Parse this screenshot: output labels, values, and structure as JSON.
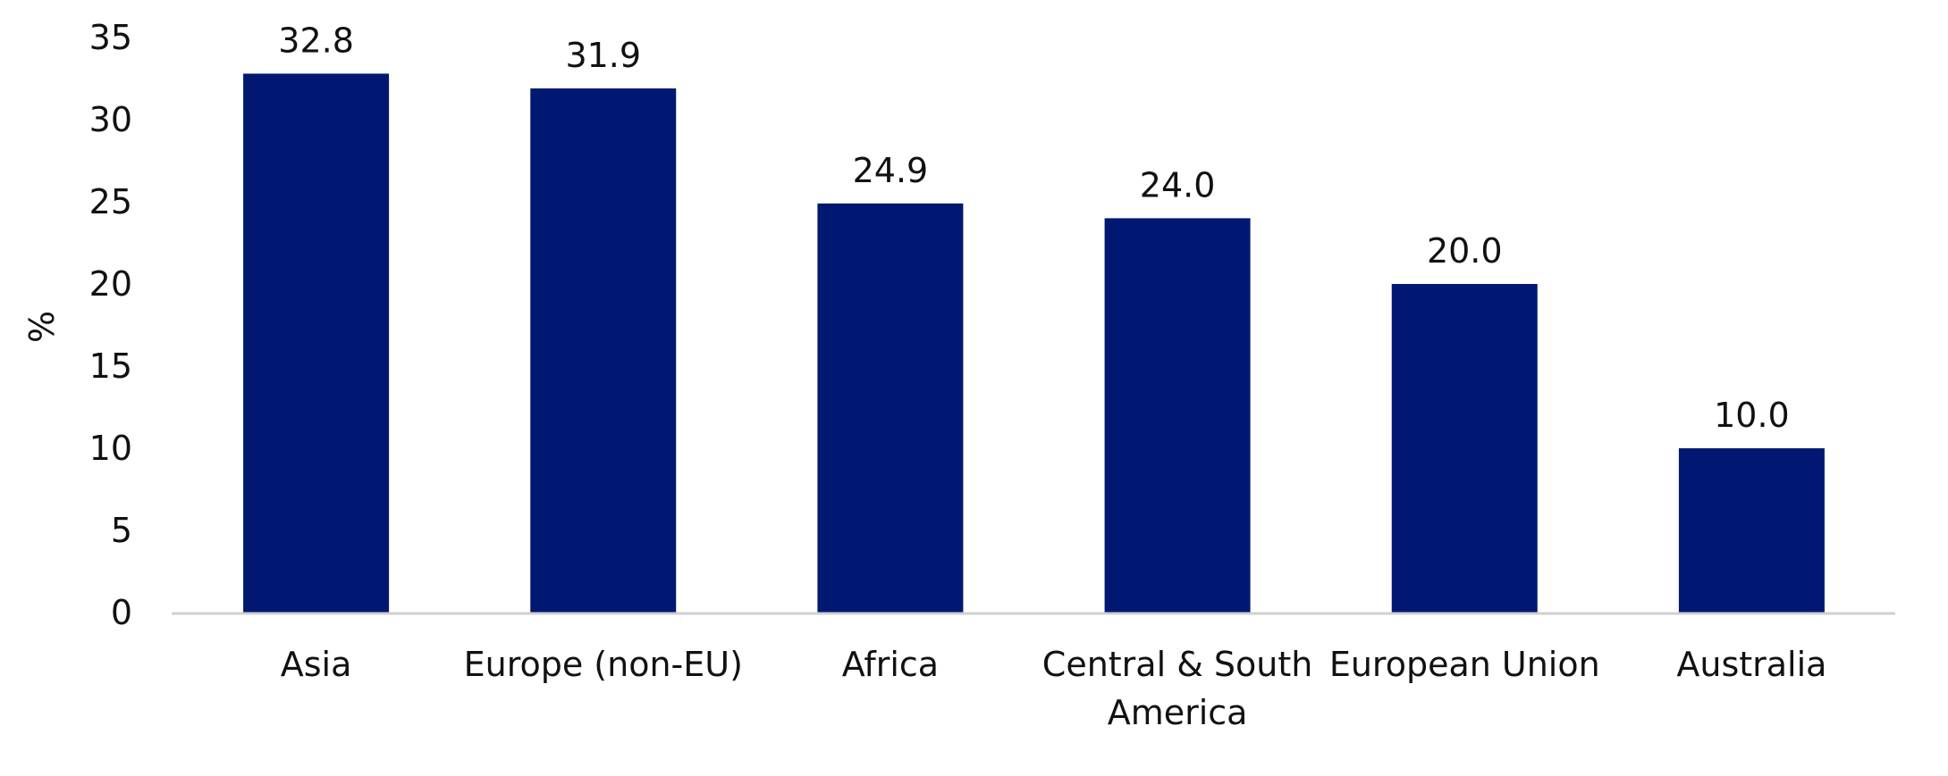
{
  "chart_data": {
    "type": "bar",
    "categories": [
      "Asia",
      "Europe (non-EU)",
      "Africa",
      "Central & South America",
      "European Union",
      "Australia"
    ],
    "category_lines": [
      [
        "Asia"
      ],
      [
        "Europe (non-EU)"
      ],
      [
        "Africa"
      ],
      [
        "Central & South",
        "America"
      ],
      [
        "European Union"
      ],
      [
        "Australia"
      ]
    ],
    "values": [
      32.8,
      31.9,
      24.9,
      24.0,
      20.0,
      10.0
    ],
    "value_labels": [
      "32.8",
      "31.9",
      "24.9",
      "24.0",
      "20.0",
      "10.0"
    ],
    "ylabel": "%",
    "ylim": [
      0,
      35
    ],
    "yticks": [
      "0",
      "5",
      "10",
      "15",
      "20",
      "25",
      "30",
      "35"
    ],
    "grid": false,
    "legend": "none",
    "bar_color": "#001871",
    "axis_color": "#d0d0d0"
  }
}
